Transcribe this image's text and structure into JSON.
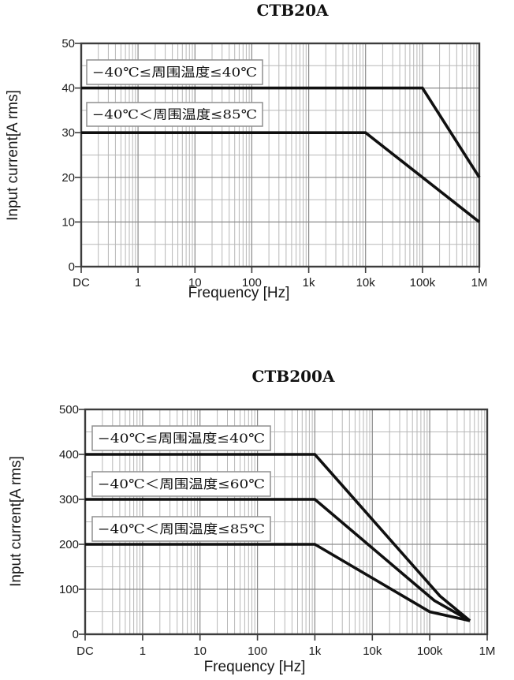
{
  "page": {
    "background": "#ffffff",
    "text_color": "#111111"
  },
  "chart_data": [
    {
      "type": "line",
      "title": "CTB20A",
      "xlabel": "Frequency [Hz]",
      "ylabel": "Input current[A rms]",
      "x_scale": "log (DC at origin)",
      "x_ticks": [
        "DC",
        "1",
        "10",
        "100",
        "1k",
        "10k",
        "100k",
        "1M"
      ],
      "y_ticks": [
        "0",
        "10",
        "20",
        "30",
        "40",
        "50"
      ],
      "ylim": [
        0,
        50
      ],
      "y_major_step": 10,
      "y_minor_step": 5,
      "grid": "major and minor, gray",
      "legend_position": "boxed labels above each curve",
      "line_color": "#111111",
      "series": [
        {
          "name": "−40℃≤周围温度≤40℃",
          "points": [
            [
              "DC",
              40
            ],
            [
              "100k",
              40
            ],
            [
              "1M",
              20
            ]
          ]
        },
        {
          "name": "−40℃＜周围温度≤85℃",
          "points": [
            [
              "DC",
              30
            ],
            [
              "10k",
              30
            ],
            [
              "1M",
              10
            ]
          ]
        }
      ]
    },
    {
      "type": "line",
      "title": "CTB200A",
      "xlabel": "Frequency [Hz]",
      "ylabel": "Input current[A rms]",
      "x_scale": "log (DC at origin)",
      "x_ticks": [
        "DC",
        "1",
        "10",
        "100",
        "1k",
        "10k",
        "100k",
        "1M"
      ],
      "y_ticks": [
        "0",
        "100",
        "200",
        "300",
        "400",
        "500"
      ],
      "ylim": [
        0,
        500
      ],
      "y_major_step": 100,
      "y_minor_step": 50,
      "grid": "major and minor, gray",
      "legend_position": "boxed labels above each curve",
      "line_color": "#111111",
      "series": [
        {
          "name": "−40℃≤周围温度≤40℃",
          "points": [
            [
              "DC",
              400
            ],
            [
              "1k",
              400
            ],
            [
              "150k",
              85
            ],
            [
              "500k",
              30
            ]
          ]
        },
        {
          "name": "−40℃＜周围温度≤60℃",
          "points": [
            [
              "DC",
              300
            ],
            [
              "1k",
              300
            ],
            [
              "120k",
              75
            ],
            [
              "500k",
              30
            ]
          ]
        },
        {
          "name": "−40℃＜周围温度≤85℃",
          "points": [
            [
              "DC",
              200
            ],
            [
              "1k",
              200
            ],
            [
              "100k",
              50
            ],
            [
              "500k",
              30
            ]
          ]
        }
      ]
    }
  ]
}
